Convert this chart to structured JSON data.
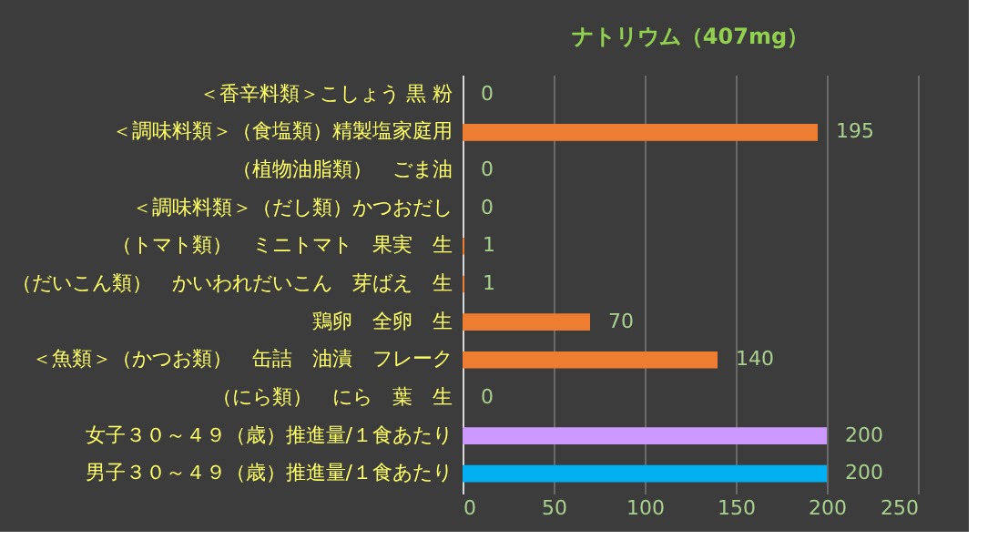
{
  "chart_data": {
    "type": "bar",
    "orientation": "horizontal",
    "title": "ナトリウム（407mg）",
    "categories": [
      "＜香辛料類＞こしょう 黒 粉",
      "＜調味料類＞（食塩類）精製塩家庭用",
      "（植物油脂類）　ごま油",
      "＜調味料類＞（だし類）かつおだし",
      "（トマト類）　ミニトマト　果実　生",
      "（だいこん類）　かいわれだいこん　芽ばえ　生",
      "鶏卵　全卵　生",
      "＜魚類＞（かつお類）　缶詰　油漬　フレーク",
      "（にら類）　にら　葉　生",
      "女子３０～４９（歳）推進量/１食あたり",
      "男子３０～４９（歳）推進量/１食あたり"
    ],
    "values": [
      0,
      195,
      0,
      0,
      1,
      1,
      70,
      140,
      0,
      200,
      200
    ],
    "colors": [
      "#ed7d31",
      "#ed7d31",
      "#ed7d31",
      "#ed7d31",
      "#ed7d31",
      "#ed7d31",
      "#ed7d31",
      "#ed7d31",
      "#ed7d31",
      "#cc99ff",
      "#00b0f0"
    ],
    "xlim": [
      0,
      250
    ],
    "xticks": [
      0,
      50,
      100,
      150,
      200,
      250
    ],
    "grid": "x",
    "data_labels": true
  }
}
